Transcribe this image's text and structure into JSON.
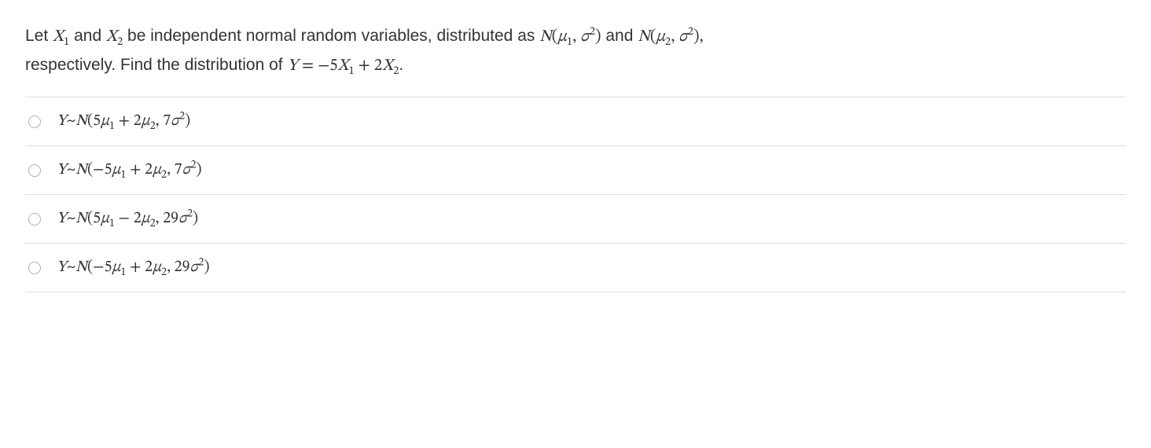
{
  "question": {
    "prefix": "Let ",
    "x1": "X",
    "x1_sub": "1",
    "mid1": " and ",
    "x2": "X",
    "x2_sub": "2",
    "mid2": " be independent normal random variables, distributed as ",
    "dist1_N": "N",
    "dist1_open": "(",
    "dist1_mu": "μ",
    "dist1_musub": "1",
    "dist1_comma": ", ",
    "dist1_sigma": "σ",
    "dist1_sigsup": "2",
    "dist1_close": ")",
    "mid3": " and ",
    "dist2_N": "N",
    "dist2_open": "(",
    "dist2_mu": "μ",
    "dist2_musub": "2",
    "dist2_comma": ", ",
    "dist2_sigma": "σ",
    "dist2_sigsup": "2",
    "dist2_close": "),",
    "line2_prefix": "respectively. Find the distribution of ",
    "y": "Y",
    "eq": " = ",
    "coef1": "−5",
    "xc1": "X",
    "xc1_sub": "1",
    "plus": " + 2",
    "xc2": "X",
    "xc2_sub": "2",
    "period": "."
  },
  "options": [
    {
      "y": "Y",
      "tilde": "~",
      "N": "N",
      "open": "(",
      "c1": "5",
      "mu1": "μ",
      "mu1sub": "1",
      "op": " + 2",
      "mu2": "μ",
      "mu2sub": "2",
      "comma": ", ",
      "varcoef": "7",
      "sigma": "σ",
      "sigsup": "2",
      "close": ")"
    },
    {
      "y": "Y",
      "tilde": "~",
      "N": "N",
      "open": "(",
      "c1": "−5",
      "mu1": "μ",
      "mu1sub": "1",
      "op": " + 2",
      "mu2": "μ",
      "mu2sub": "2",
      "comma": ", ",
      "varcoef": "7",
      "sigma": "σ",
      "sigsup": "2",
      "close": ")"
    },
    {
      "y": "Y",
      "tilde": "~",
      "N": "N",
      "open": "(",
      "c1": "5",
      "mu1": "μ",
      "mu1sub": "1",
      "op": " − 2",
      "mu2": "μ",
      "mu2sub": "2",
      "comma": ", ",
      "varcoef": "29",
      "sigma": "σ",
      "sigsup": "2",
      "close": ")"
    },
    {
      "y": "Y",
      "tilde": "~",
      "N": "N",
      "open": "(",
      "c1": "−5",
      "mu1": "μ",
      "mu1sub": "1",
      "op": " + 2",
      "mu2": "μ",
      "mu2sub": "2",
      "comma": ", ",
      "varcoef": "29",
      "sigma": "σ",
      "sigsup": "2",
      "close": ")"
    }
  ]
}
